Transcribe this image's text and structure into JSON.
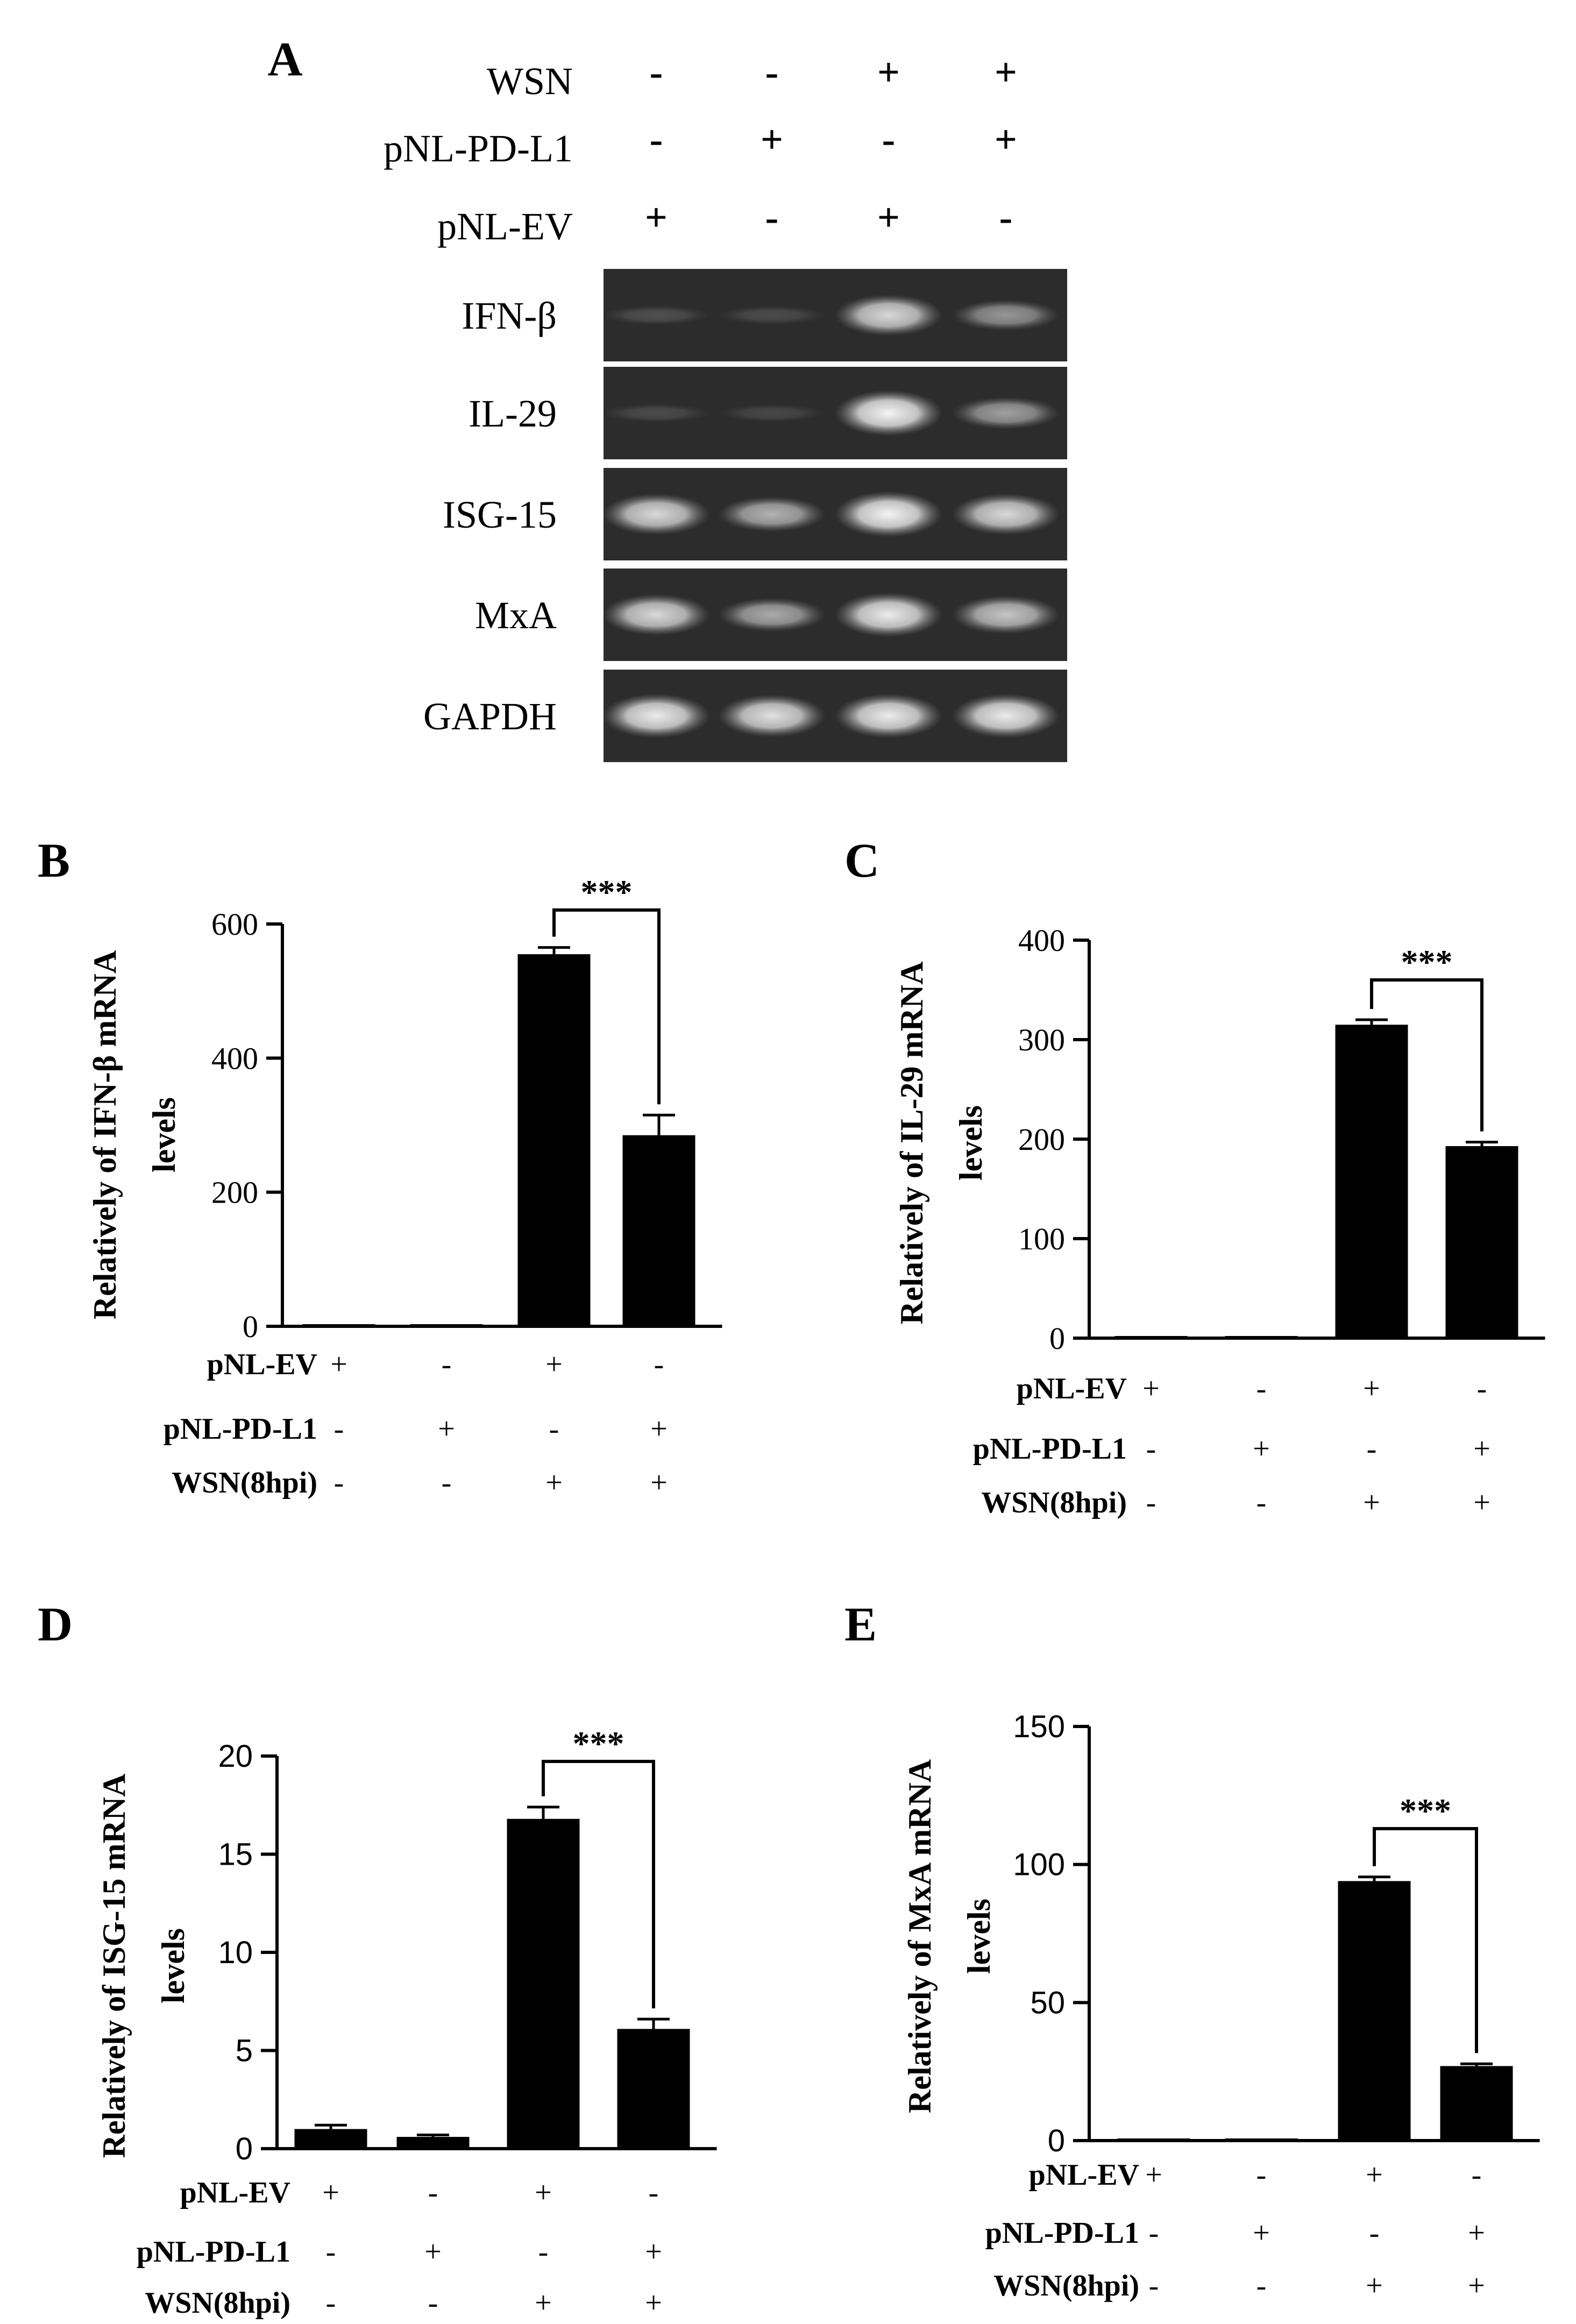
{
  "panel_a": {
    "letter": "A",
    "conditions": [
      {
        "label": "WSN",
        "signs": [
          "-",
          "-",
          "+",
          "+"
        ]
      },
      {
        "label": "pNL-PD-L1",
        "signs": [
          "-",
          "+",
          "-",
          "+"
        ]
      },
      {
        "label": "pNL-EV",
        "signs": [
          "+",
          "-",
          "+",
          "-"
        ]
      }
    ],
    "gels": [
      {
        "label": "IFN-β",
        "intensity": [
          0.08,
          0.06,
          0.8,
          0.45
        ]
      },
      {
        "label": "IL-29",
        "intensity": [
          0.05,
          0.03,
          0.95,
          0.5
        ]
      },
      {
        "label": "ISG-15",
        "intensity": [
          0.8,
          0.6,
          0.95,
          0.8
        ]
      },
      {
        "label": "MxA",
        "intensity": [
          0.8,
          0.55,
          0.9,
          0.7
        ]
      },
      {
        "label": "GAPDH",
        "intensity": [
          0.9,
          0.85,
          0.9,
          0.9
        ]
      }
    ]
  },
  "chart_data": [
    {
      "letter": "B",
      "type": "bar",
      "ylabel": "Relatively of IFN-β mRNA levels",
      "ylim": [
        0,
        600
      ],
      "yticks": [
        0,
        200,
        400,
        600
      ],
      "values": [
        0,
        0,
        555,
        285
      ],
      "errors": [
        0,
        0,
        10,
        30
      ],
      "significance": {
        "from": 2,
        "to": 3,
        "label": "***"
      },
      "rows": [
        {
          "label": "pNL-EV",
          "signs": [
            "+",
            "-",
            "+",
            "-"
          ]
        },
        {
          "label": "pNL-PD-L1",
          "signs": [
            "-",
            "+",
            "-",
            "+"
          ]
        },
        {
          "label": "WSN(8hpi)",
          "signs": [
            "-",
            "-",
            "+",
            "+"
          ]
        }
      ]
    },
    {
      "letter": "C",
      "type": "bar",
      "ylabel": "Relatively of IL-29 mRNA levels",
      "ylim": [
        0,
        400
      ],
      "yticks": [
        0,
        100,
        200,
        300,
        400
      ],
      "values": [
        0,
        0,
        315,
        193
      ],
      "errors": [
        0,
        0,
        5,
        4
      ],
      "significance": {
        "from": 2,
        "to": 3,
        "label": "***"
      },
      "rows": [
        {
          "label": "pNL-EV",
          "signs": [
            "+",
            "-",
            "+",
            "-"
          ]
        },
        {
          "label": "pNL-PD-L1",
          "signs": [
            "-",
            "+",
            "-",
            "+"
          ]
        },
        {
          "label": "WSN(8hpi)",
          "signs": [
            "-",
            "-",
            "+",
            "+"
          ]
        }
      ]
    },
    {
      "letter": "D",
      "type": "bar",
      "ylabel": "Relatively of ISG-15 mRNA levels",
      "ylim": [
        0,
        20
      ],
      "yticks": [
        0,
        5,
        10,
        15,
        20
      ],
      "values": [
        1.0,
        0.6,
        16.8,
        6.1
      ],
      "errors": [
        0.2,
        0.1,
        0.6,
        0.5
      ],
      "significance": {
        "from": 2,
        "to": 3,
        "label": "***"
      },
      "rows": [
        {
          "label": "pNL-EV",
          "signs": [
            "+",
            "-",
            "+",
            "-"
          ]
        },
        {
          "label": "pNL-PD-L1",
          "signs": [
            "-",
            "+",
            "-",
            "+"
          ]
        },
        {
          "label": "WSN(8hpi)",
          "signs": [
            "-",
            "-",
            "+",
            "+"
          ]
        }
      ]
    },
    {
      "letter": "E",
      "type": "bar",
      "ylabel": "Relatively of MxA mRNA levels",
      "ylim": [
        0,
        150
      ],
      "yticks": [
        0,
        50,
        100,
        150
      ],
      "values": [
        0.5,
        0,
        94,
        27
      ],
      "errors": [
        0,
        0,
        1.5,
        0.8
      ],
      "significance": {
        "from": 2,
        "to": 3,
        "label": "***"
      },
      "rows": [
        {
          "label": "pNL-EV",
          "signs": [
            "+",
            "-",
            "+",
            "-"
          ]
        },
        {
          "label": "pNL-PD-L1",
          "signs": [
            "-",
            "+",
            "-",
            "+"
          ]
        },
        {
          "label": "WSN(8hpi)",
          "signs": [
            "-",
            "-",
            "+",
            "+"
          ]
        }
      ]
    }
  ]
}
